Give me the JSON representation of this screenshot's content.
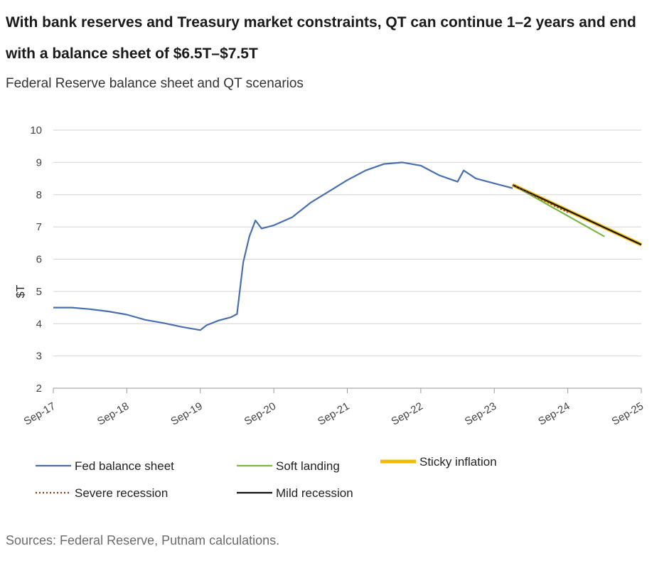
{
  "header": {
    "title": "With bank reserves and Treasury market constraints, QT can continue 1–2 years and end with a balance sheet of $6.5T–$7.5T",
    "subtitle": "Federal Reserve balance sheet and QT scenarios"
  },
  "footer": {
    "source": "Sources: Federal Reserve, Putnam calculations."
  },
  "chart_data": {
    "type": "line",
    "title": "",
    "xlabel": "",
    "ylabel": "$T",
    "ylim": [
      2,
      10
    ],
    "yticks": [
      2,
      3,
      4,
      5,
      6,
      7,
      8,
      9,
      10
    ],
    "xlim": [
      "2017-09",
      "2025-09"
    ],
    "xticks": [
      "Sep-17",
      "Sep-18",
      "Sep-19",
      "Sep-20",
      "Sep-21",
      "Sep-22",
      "Sep-23",
      "Sep-24",
      "Sep-25"
    ],
    "grid": "horizontal",
    "legend_position": "bottom",
    "series": [
      {
        "name": "Fed balance sheet",
        "color": "#4a6fad",
        "style": "solid",
        "points": [
          [
            "2017-09",
            4.5
          ],
          [
            "2017-12",
            4.5
          ],
          [
            "2018-03",
            4.45
          ],
          [
            "2018-06",
            4.38
          ],
          [
            "2018-09",
            4.28
          ],
          [
            "2018-12",
            4.12
          ],
          [
            "2019-03",
            4.02
          ],
          [
            "2019-06",
            3.9
          ],
          [
            "2019-09",
            3.8
          ],
          [
            "2019-10",
            3.95
          ],
          [
            "2019-12",
            4.1
          ],
          [
            "2020-02",
            4.2
          ],
          [
            "2020-03",
            4.3
          ],
          [
            "2020-04",
            5.9
          ],
          [
            "2020-05",
            6.7
          ],
          [
            "2020-06",
            7.2
          ],
          [
            "2020-07",
            6.95
          ],
          [
            "2020-09",
            7.05
          ],
          [
            "2020-12",
            7.3
          ],
          [
            "2021-03",
            7.75
          ],
          [
            "2021-06",
            8.1
          ],
          [
            "2021-09",
            8.45
          ],
          [
            "2021-12",
            8.75
          ],
          [
            "2022-03",
            8.95
          ],
          [
            "2022-06",
            9.0
          ],
          [
            "2022-09",
            8.9
          ],
          [
            "2022-12",
            8.6
          ],
          [
            "2023-03",
            8.4
          ],
          [
            "2023-04",
            8.75
          ],
          [
            "2023-06",
            8.5
          ],
          [
            "2023-09",
            8.35
          ],
          [
            "2023-12",
            8.2
          ]
        ]
      },
      {
        "name": "Soft landing",
        "color": "#7ab648",
        "style": "solid",
        "points": [
          [
            "2023-12",
            8.3
          ],
          [
            "2025-03",
            6.7
          ]
        ]
      },
      {
        "name": "Sticky inflation",
        "color": "#f5b800",
        "style": "thick",
        "points": [
          [
            "2023-12",
            8.3
          ],
          [
            "2025-09",
            6.45
          ]
        ]
      },
      {
        "name": "Severe recession",
        "color": "#8b3a1a",
        "style": "dotted",
        "points": [
          [
            "2023-12",
            8.3
          ],
          [
            "2024-09",
            7.45
          ]
        ]
      },
      {
        "name": "Mild recession",
        "color": "#111111",
        "style": "solid",
        "points": [
          [
            "2023-12",
            8.3
          ],
          [
            "2025-09",
            6.45
          ]
        ]
      }
    ],
    "legend": [
      {
        "label": "Fed balance sheet",
        "color": "#4a6fad",
        "style": "solid"
      },
      {
        "label": "Soft landing",
        "color": "#7ab648",
        "style": "solid"
      },
      {
        "label": "Sticky inflation",
        "color": "#f5b800",
        "style": "thick"
      },
      {
        "label": "Severe recession",
        "color": "#8b3a1a",
        "style": "dotted"
      },
      {
        "label": "Mild recession",
        "color": "#111111",
        "style": "solid"
      }
    ]
  }
}
